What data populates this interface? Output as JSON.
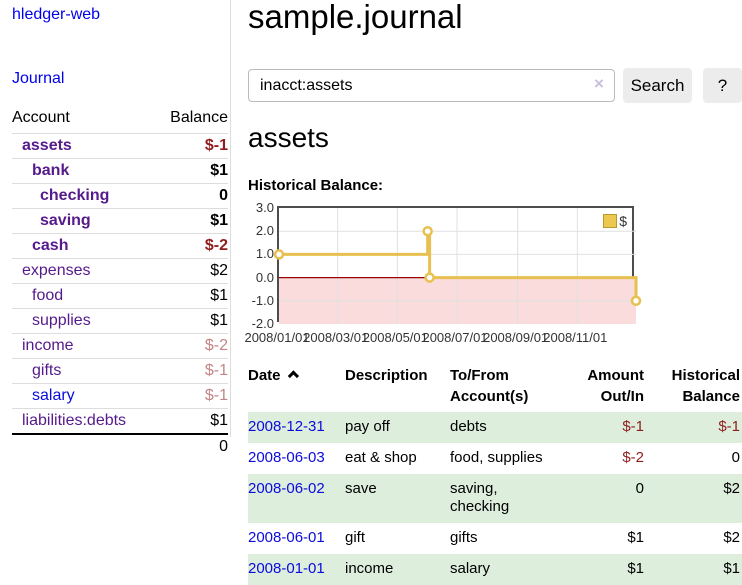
{
  "colors": {
    "link_purple": "#551a8b",
    "link_blue": "#0b0bdd",
    "text_black": "#000000",
    "neg_strong": "#8f1d1d",
    "neg_muted": "#c28585",
    "row_stripe": "#ddeedd",
    "chart_line": "#e7c050",
    "chart_marker_fill": "#ffffff",
    "chart_negative_bg": "#fbdcdc",
    "chart_zero_line": "#990000",
    "chart_grid": "#e0e0e0"
  },
  "sidebar": {
    "app_title": "hledger-web",
    "nav_journal": "Journal",
    "header": {
      "account": "Account",
      "balance": "Balance"
    },
    "accounts": [
      {
        "name": "assets",
        "balance": "$-1",
        "level": 1,
        "bold": true,
        "name_tone": "purple",
        "balance_tone": "strong-neg"
      },
      {
        "name": "bank",
        "balance": "$1",
        "level": 2,
        "bold": true,
        "name_tone": "purple",
        "balance_tone": "normal"
      },
      {
        "name": "checking",
        "balance": "0",
        "level": 3,
        "bold": true,
        "name_tone": "purple",
        "balance_tone": "normal"
      },
      {
        "name": "saving",
        "balance": "$1",
        "level": 3,
        "bold": true,
        "name_tone": "purple",
        "balance_tone": "normal"
      },
      {
        "name": "cash",
        "balance": "$-2",
        "level": 2,
        "bold": true,
        "name_tone": "purple",
        "balance_tone": "strong-neg"
      },
      {
        "name": "expenses",
        "balance": "$2",
        "level": 1,
        "bold": false,
        "name_tone": "purple",
        "balance_tone": "normal"
      },
      {
        "name": "food",
        "balance": "$1",
        "level": 2,
        "bold": false,
        "name_tone": "purple",
        "balance_tone": "normal"
      },
      {
        "name": "supplies",
        "balance": "$1",
        "level": 2,
        "bold": false,
        "name_tone": "purple",
        "balance_tone": "normal"
      },
      {
        "name": "income",
        "balance": "$-2",
        "level": 1,
        "bold": false,
        "name_tone": "purple",
        "balance_tone": "muted-neg"
      },
      {
        "name": "gifts",
        "balance": "$-1",
        "level": 2,
        "bold": false,
        "name_tone": "purple",
        "balance_tone": "muted-neg"
      },
      {
        "name": "salary",
        "balance": "$-1",
        "level": 2,
        "bold": false,
        "name_tone": "blue",
        "balance_tone": "muted-neg"
      },
      {
        "name": "liabilities:debts",
        "balance": "$1",
        "level": 1,
        "bold": false,
        "name_tone": "purple",
        "balance_tone": "normal"
      }
    ],
    "total": "0"
  },
  "main": {
    "title": "sample.journal",
    "search": {
      "value": "inacct:assets",
      "clear_icon": "×",
      "button_label": "Search",
      "help_label": "?"
    },
    "account_heading": "assets",
    "chart_label": "Historical Balance:"
  },
  "chart_data": {
    "type": "line",
    "title": "Historical Balance:",
    "step": true,
    "series": [
      {
        "name": "$",
        "points": [
          [
            "2008-01-01",
            1
          ],
          [
            "2008-06-01",
            2
          ],
          [
            "2008-06-03",
            0
          ],
          [
            "2008-12-31",
            -1
          ]
        ]
      }
    ],
    "ylim": [
      -2,
      3
    ],
    "yticks": [
      "3.0",
      "2.0",
      "1.0",
      "0.0",
      "-1.0",
      "-2.0"
    ],
    "xticks": [
      "2008/01/01",
      "2008/03/01",
      "2008/05/01",
      "2008/07/01",
      "2008/09/01",
      "2008/11/01"
    ],
    "x_range": [
      "2008-01-01",
      "2008-12-31"
    ],
    "legend": "$",
    "legend_position": "top-right",
    "grid": true,
    "negative_region_shaded": true
  },
  "register": {
    "headers": [
      "Date",
      "Description",
      "To/From Account(s)",
      "Amount Out/In",
      "Historical Balance"
    ],
    "rows": [
      {
        "date": "2008-12-31",
        "description": "pay off",
        "accounts": "debts",
        "amount": "$-1",
        "balance": "$-1",
        "amount_neg": true,
        "balance_neg": true
      },
      {
        "date": "2008-06-03",
        "description": "eat & shop",
        "accounts": "food, supplies",
        "amount": "$-2",
        "balance": "0",
        "amount_neg": true,
        "balance_neg": false
      },
      {
        "date": "2008-06-02",
        "description": "save",
        "accounts": "saving, checking",
        "amount": "0",
        "balance": "$2",
        "amount_neg": false,
        "balance_neg": false
      },
      {
        "date": "2008-06-01",
        "description": "gift",
        "accounts": "gifts",
        "amount": "$1",
        "balance": "$2",
        "amount_neg": false,
        "balance_neg": false
      },
      {
        "date": "2008-01-01",
        "description": "income",
        "accounts": "salary",
        "amount": "$1",
        "balance": "$1",
        "amount_neg": false,
        "balance_neg": false
      }
    ]
  }
}
